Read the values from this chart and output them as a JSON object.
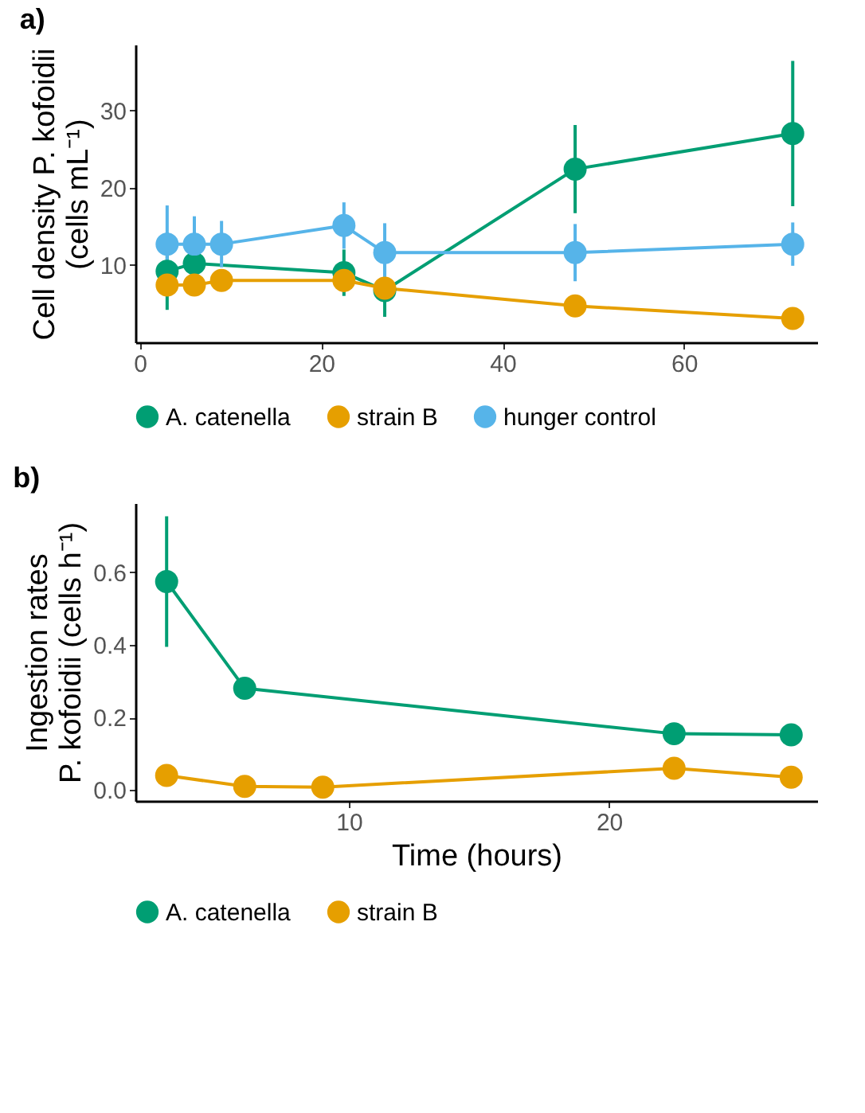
{
  "chart_data": [
    {
      "type": "line",
      "title": "a)",
      "ylabel": "Cell density P. kofoidii\n(cells mL⁻¹)",
      "x": [
        3,
        6,
        9,
        22.5,
        27,
        48,
        72
      ],
      "xlim": [
        -0.5,
        74.7
      ],
      "xticks": [
        0,
        20,
        40,
        60
      ],
      "ylim": [
        0,
        38.5
      ],
      "yticks": [
        10,
        20,
        30
      ],
      "marker": "circle",
      "grid": false,
      "legend": "bottom",
      "series": [
        {
          "name": "A. catenella",
          "color": "#009e73",
          "values": [
            9.2,
            10.2,
            null,
            9.0,
            6.7,
            22.4,
            27
          ],
          "errors": [
            5,
            null,
            null,
            3,
            3.4,
            5.7,
            9.4
          ]
        },
        {
          "name": "strain B",
          "color": "#e69f00",
          "values": [
            7.4,
            7.4,
            8.0,
            8.0,
            7.0,
            4.7,
            3.1
          ],
          "errors": [
            null,
            null,
            null,
            1.5,
            null,
            null,
            null
          ]
        },
        {
          "name": "hunger control",
          "color": "#56b4e9",
          "values": [
            12.7,
            12.7,
            12.7,
            15.1,
            11.6,
            11.6,
            12.7
          ],
          "errors": [
            5,
            3.6,
            3,
            3,
            3.8,
            3.7,
            2.8
          ]
        }
      ]
    },
    {
      "type": "line",
      "title": "b)",
      "xlabel": "Time (hours)",
      "ylabel": "Ingestion rates\nP. kofoidii (cells h⁻¹)",
      "x": [
        3,
        6,
        9,
        22.5,
        27
      ],
      "xlim": [
        1.8,
        28
      ],
      "xticks": [
        10,
        20
      ],
      "ylim": [
        -0.03,
        0.79
      ],
      "yticks": [
        {
          "value": 0,
          "label": "0.0"
        },
        0.2,
        0.4,
        0.6
      ],
      "marker": "circle",
      "grid": false,
      "legend": "bottom",
      "series": [
        {
          "name": "A. catenella",
          "color": "#009e73",
          "values": [
            0.574,
            0.28,
            null,
            0.155,
            0.152
          ],
          "errors": [
            0.18,
            0.03,
            null,
            0.03,
            0.03
          ]
        },
        {
          "name": "strain B",
          "color": "#e69f00",
          "values": [
            0.04,
            0.01,
            0.008,
            0.06,
            0.035
          ],
          "errors": [
            null,
            null,
            null,
            null,
            null
          ]
        }
      ]
    }
  ]
}
